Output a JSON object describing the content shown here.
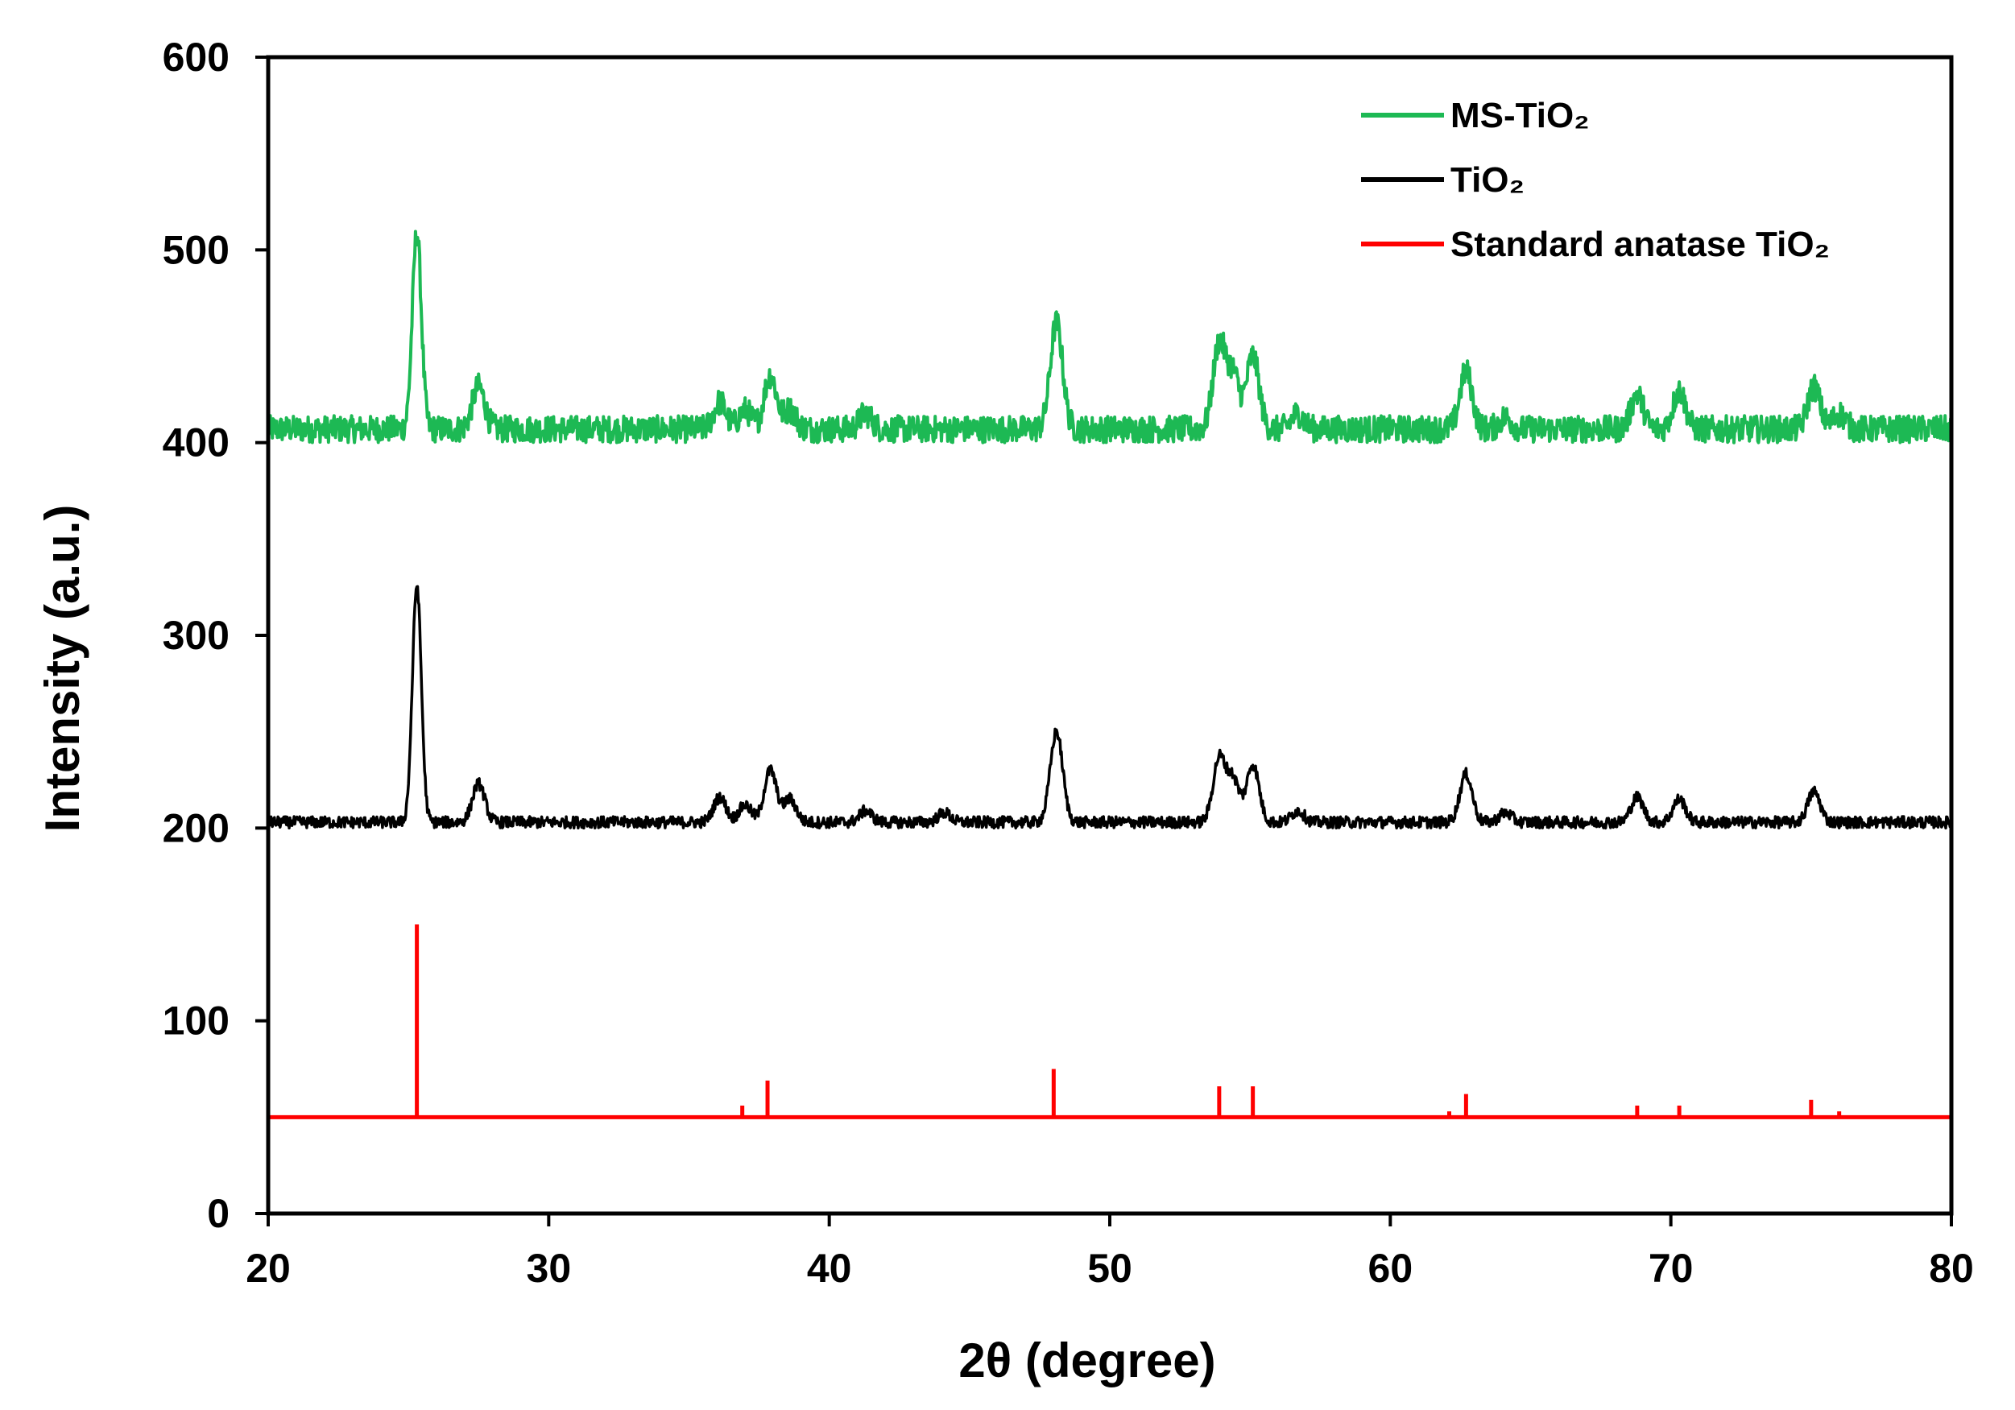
{
  "chart_data": {
    "type": "line",
    "title": "",
    "xlabel": "2θ (degree)",
    "ylabel": "Intensity (a.u.)",
    "xlim": [
      20,
      80
    ],
    "ylim": [
      0,
      600
    ],
    "xticks": [
      20,
      30,
      40,
      50,
      60,
      70,
      80
    ],
    "yticks": [
      0,
      100,
      200,
      300,
      400,
      500,
      600
    ],
    "grid": false,
    "legend_position": "top-right",
    "series": [
      {
        "name": "MS-TiO₂",
        "color": "#1db954",
        "style": "noisy-line",
        "baseline": 407,
        "peaks": [
          {
            "x": 25.3,
            "height": 102
          },
          {
            "x": 27.5,
            "height": 22
          },
          {
            "x": 36.1,
            "height": 14
          },
          {
            "x": 37.0,
            "height": 10
          },
          {
            "x": 37.9,
            "height": 28
          },
          {
            "x": 38.6,
            "height": 10
          },
          {
            "x": 41.3,
            "height": 8
          },
          {
            "x": 48.1,
            "height": 55
          },
          {
            "x": 53.9,
            "height": 44
          },
          {
            "x": 54.4,
            "height": 28
          },
          {
            "x": 55.1,
            "height": 38
          },
          {
            "x": 56.7,
            "height": 8
          },
          {
            "x": 62.7,
            "height": 30
          },
          {
            "x": 64.1,
            "height": 6
          },
          {
            "x": 68.8,
            "height": 18
          },
          {
            "x": 70.3,
            "height": 20
          },
          {
            "x": 75.1,
            "height": 22
          },
          {
            "x": 76.0,
            "height": 8
          }
        ]
      },
      {
        "name": "TiO₂",
        "color": "#000000",
        "style": "noisy-line",
        "baseline": 203,
        "peaks": [
          {
            "x": 25.3,
            "height": 123
          },
          {
            "x": 27.5,
            "height": 20
          },
          {
            "x": 36.1,
            "height": 13
          },
          {
            "x": 37.0,
            "height": 9
          },
          {
            "x": 37.9,
            "height": 27
          },
          {
            "x": 38.6,
            "height": 12
          },
          {
            "x": 41.3,
            "height": 6
          },
          {
            "x": 44.1,
            "height": 5
          },
          {
            "x": 48.1,
            "height": 47
          },
          {
            "x": 53.9,
            "height": 33
          },
          {
            "x": 54.4,
            "height": 22
          },
          {
            "x": 55.1,
            "height": 30
          },
          {
            "x": 56.7,
            "height": 6
          },
          {
            "x": 62.7,
            "height": 25
          },
          {
            "x": 64.1,
            "height": 5
          },
          {
            "x": 68.8,
            "height": 13
          },
          {
            "x": 70.3,
            "height": 12
          },
          {
            "x": 75.1,
            "height": 16
          }
        ]
      },
      {
        "name": "Standard anatase TiO₂",
        "color": "#ff0000",
        "style": "stick",
        "baseline": 50,
        "peaks": [
          {
            "x": 25.3,
            "height": 100
          },
          {
            "x": 36.9,
            "height": 6
          },
          {
            "x": 37.8,
            "height": 19
          },
          {
            "x": 48.0,
            "height": 25
          },
          {
            "x": 53.9,
            "height": 16
          },
          {
            "x": 55.1,
            "height": 16
          },
          {
            "x": 62.1,
            "height": 3
          },
          {
            "x": 62.7,
            "height": 12
          },
          {
            "x": 68.8,
            "height": 6
          },
          {
            "x": 70.3,
            "height": 6
          },
          {
            "x": 75.0,
            "height": 9
          },
          {
            "x": 76.0,
            "height": 3
          }
        ]
      }
    ]
  }
}
